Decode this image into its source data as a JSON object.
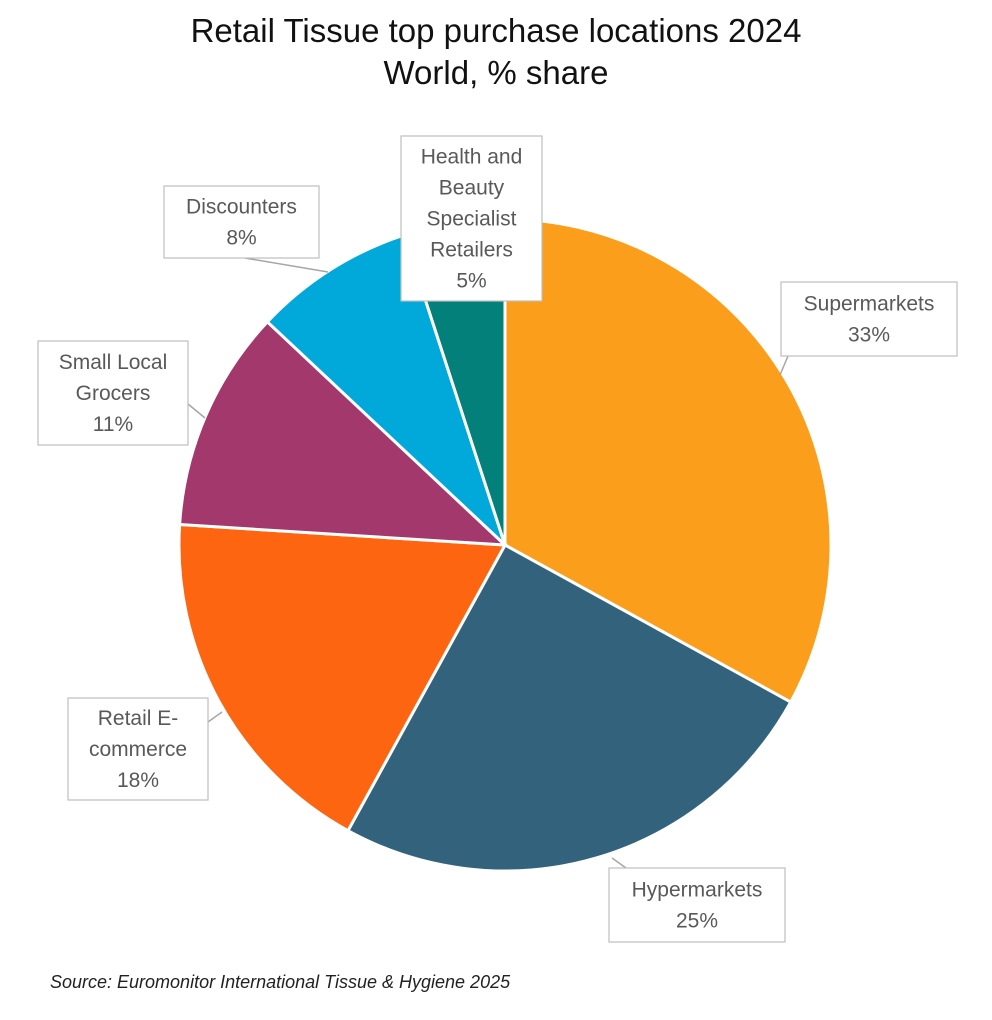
{
  "chart_data": {
    "type": "pie",
    "title": "Retail Tissue top purchase locations 2024",
    "subtitle": "World, % share",
    "unit": "%",
    "slices": [
      {
        "label": "Supermarkets",
        "label_lines": [
          "Supermarkets"
        ],
        "value": 33,
        "display": "33%",
        "color": "#FA9E1B"
      },
      {
        "label": "Hypermarkets",
        "label_lines": [
          "Hypermarkets"
        ],
        "value": 25,
        "display": "25%",
        "color": "#33627D"
      },
      {
        "label": "Retail E-commerce",
        "label_lines": [
          "Retail E-",
          "commerce"
        ],
        "value": 18,
        "display": "18%",
        "color": "#FE6510"
      },
      {
        "label": "Small Local Grocers",
        "label_lines": [
          "Small Local",
          "Grocers"
        ],
        "value": 11,
        "display": "11%",
        "color": "#A3386C"
      },
      {
        "label": "Discounters",
        "label_lines": [
          "Discounters"
        ],
        "value": 8,
        "display": "8%",
        "color": "#00A9DA"
      },
      {
        "label": "Health and Beauty Specialist Retailers",
        "label_lines": [
          "Health and",
          "Beauty",
          "Specialist",
          "Retailers"
        ],
        "value": 5,
        "display": "5%",
        "color": "#04807A"
      }
    ],
    "legend": "none",
    "data_labels": "callouts"
  },
  "source": "Source: Euromonitor International Tissue & Hygiene 2025"
}
